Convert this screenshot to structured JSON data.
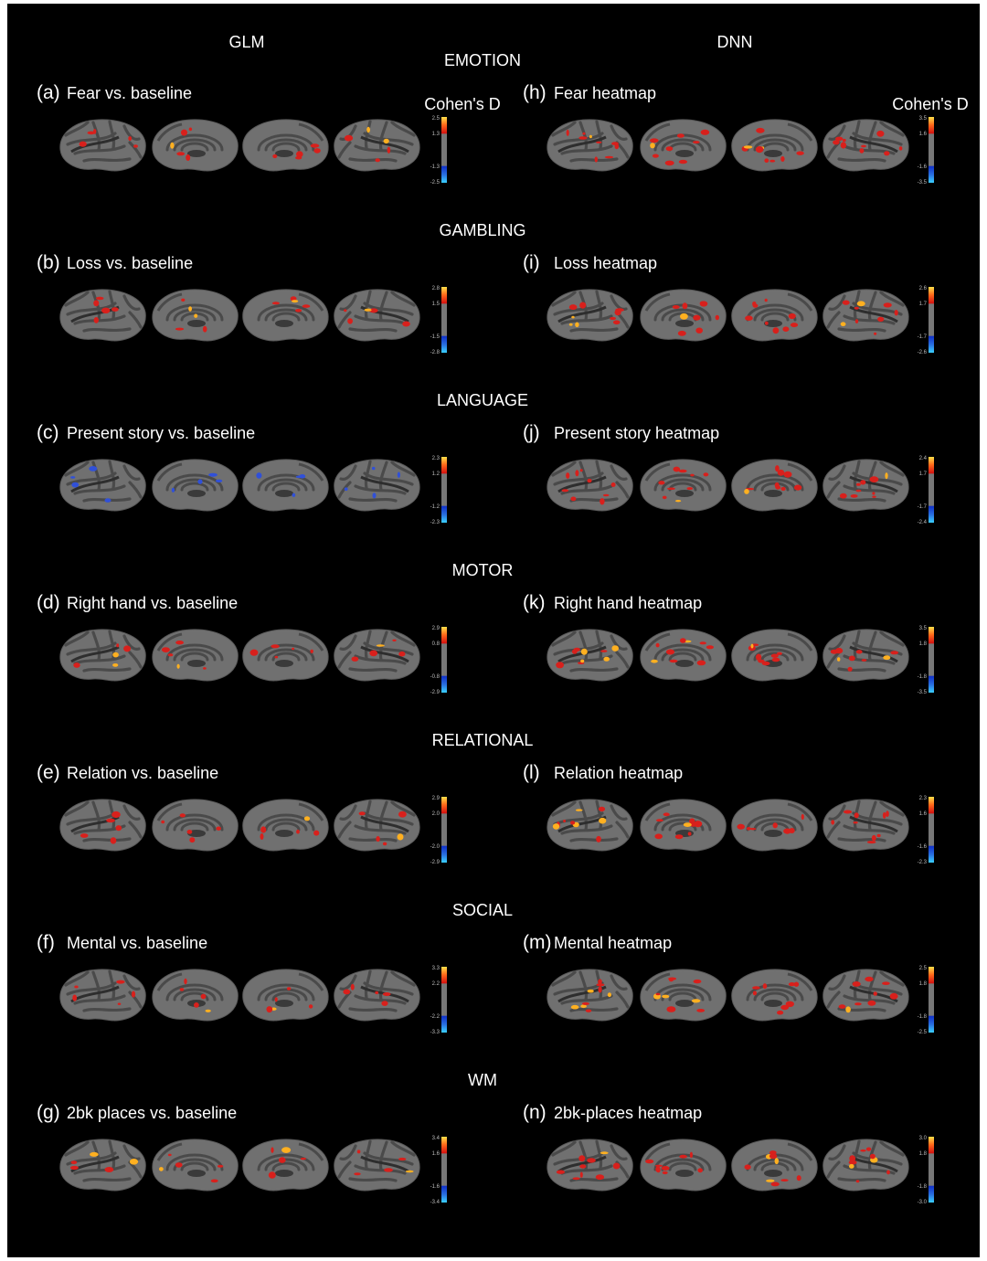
{
  "header": {
    "left_title": "GLM",
    "right_title": "DNN"
  },
  "rows": [
    {
      "task": "EMOTION",
      "left": {
        "tag": "(a)",
        "label": "Fear vs. baseline",
        "colorbar_title": "Cohen's D",
        "colorbar_ticks": [
          "2.5",
          "1.3",
          "-1.3",
          "-2.5"
        ]
      },
      "right": {
        "tag": "(h)",
        "label": "Fear heatmap",
        "colorbar_title": "Cohen's D",
        "colorbar_ticks": [
          "3.5",
          "1.6",
          "-1.6",
          "-3.5"
        ]
      }
    },
    {
      "task": "GAMBLING",
      "left": {
        "tag": "(b)",
        "label": "Loss vs. baseline",
        "colorbar_ticks": [
          "2.8",
          "1.5",
          "-1.5",
          "-2.8"
        ]
      },
      "right": {
        "tag": "(i)",
        "label": "Loss heatmap",
        "colorbar_ticks": [
          "2.6",
          "1.7",
          "-1.7",
          "-2.6"
        ]
      }
    },
    {
      "task": "LANGUAGE",
      "left": {
        "tag": "(c)",
        "label": "Present story vs. baseline",
        "colorbar_ticks": [
          "2.3",
          "1.2",
          "-1.2",
          "-2.3"
        ]
      },
      "right": {
        "tag": "(j)",
        "label": "Present story heatmap",
        "colorbar_ticks": [
          "2.4",
          "1.7",
          "-1.7",
          "-2.4"
        ]
      }
    },
    {
      "task": "MOTOR",
      "left": {
        "tag": "(d)",
        "label": "Right hand vs. baseline",
        "colorbar_ticks": [
          "2.9",
          "0.8",
          "-0.8",
          "-2.9"
        ]
      },
      "right": {
        "tag": "(k)",
        "label": "Right hand heatmap",
        "colorbar_ticks": [
          "3.5",
          "1.8",
          "-1.8",
          "-3.5"
        ]
      }
    },
    {
      "task": "RELATIONAL",
      "left": {
        "tag": "(e)",
        "label": "Relation vs. baseline",
        "colorbar_ticks": [
          "2.9",
          "2.0",
          "-2.0",
          "-2.9"
        ]
      },
      "right": {
        "tag": "(l)",
        "label": "Relation heatmap",
        "colorbar_ticks": [
          "2.3",
          "1.6",
          "-1.6",
          "-2.3"
        ]
      }
    },
    {
      "task": "SOCIAL",
      "left": {
        "tag": "(f)",
        "label": "Mental vs. baseline",
        "colorbar_ticks": [
          "3.3",
          "2.2",
          "-2.2",
          "-3.3"
        ]
      },
      "right": {
        "tag": "(m)",
        "label": "Mental heatmap",
        "colorbar_ticks": [
          "2.5",
          "1.8",
          "-1.8",
          "-2.5"
        ]
      }
    },
    {
      "task": "WM",
      "left": {
        "tag": "(g)",
        "label": "2bk places vs. baseline",
        "colorbar_ticks": [
          "3.4",
          "1.6",
          "-1.6",
          "-3.4"
        ]
      },
      "right": {
        "tag": "(n)",
        "label": "2bk-places heatmap",
        "colorbar_ticks": [
          "3.0",
          "1.8",
          "-1.8",
          "-3.0"
        ]
      }
    }
  ]
}
